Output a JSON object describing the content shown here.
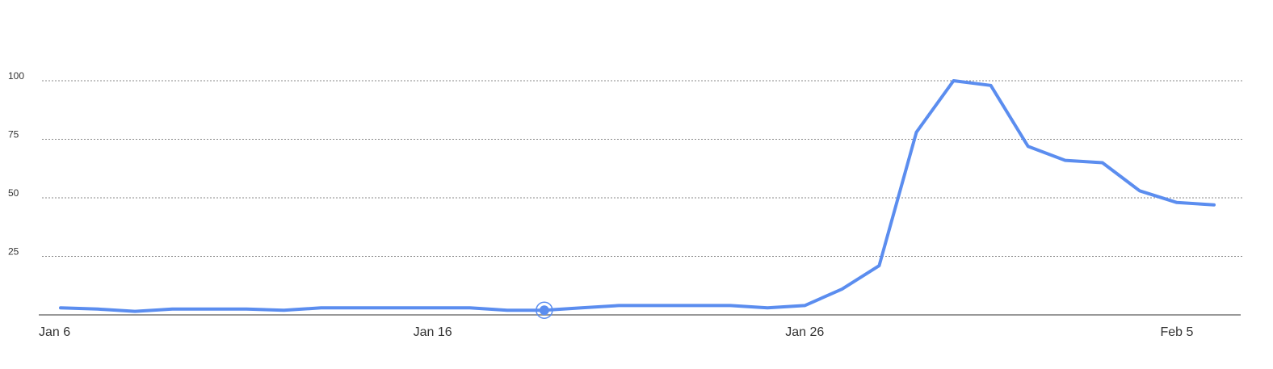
{
  "chart_data": {
    "type": "line",
    "title": "",
    "xlabel": "",
    "ylabel": "",
    "x": [
      "Jan 6",
      "Jan 7",
      "Jan 8",
      "Jan 9",
      "Jan 10",
      "Jan 11",
      "Jan 12",
      "Jan 13",
      "Jan 14",
      "Jan 15",
      "Jan 16",
      "Jan 17",
      "Jan 18",
      "Jan 19",
      "Jan 20",
      "Jan 21",
      "Jan 22",
      "Jan 23",
      "Jan 24",
      "Jan 25",
      "Jan 26",
      "Jan 27",
      "Jan 28",
      "Jan 29",
      "Jan 30",
      "Jan 31",
      "Feb 1",
      "Feb 2",
      "Feb 3",
      "Feb 4",
      "Feb 5",
      "Feb 6"
    ],
    "series": [
      {
        "values": [
          3,
          2.5,
          1.5,
          2.5,
          2.5,
          2.5,
          2,
          3,
          3,
          3,
          3,
          3,
          2,
          2,
          3,
          4,
          4,
          4,
          4,
          3,
          4,
          11,
          21,
          78,
          100,
          98,
          72,
          66,
          65,
          53,
          48,
          47
        ]
      }
    ],
    "highlight_index": 13,
    "xticks": [
      "Jan 6",
      "Jan 16",
      "Jan 26",
      "Feb 5"
    ],
    "yticks": [
      25,
      50,
      75,
      100
    ],
    "ylim": [
      0,
      100
    ],
    "grid": true,
    "colors": {
      "line": "#5b8def",
      "grid": "#888888",
      "axis": "#999999"
    }
  }
}
